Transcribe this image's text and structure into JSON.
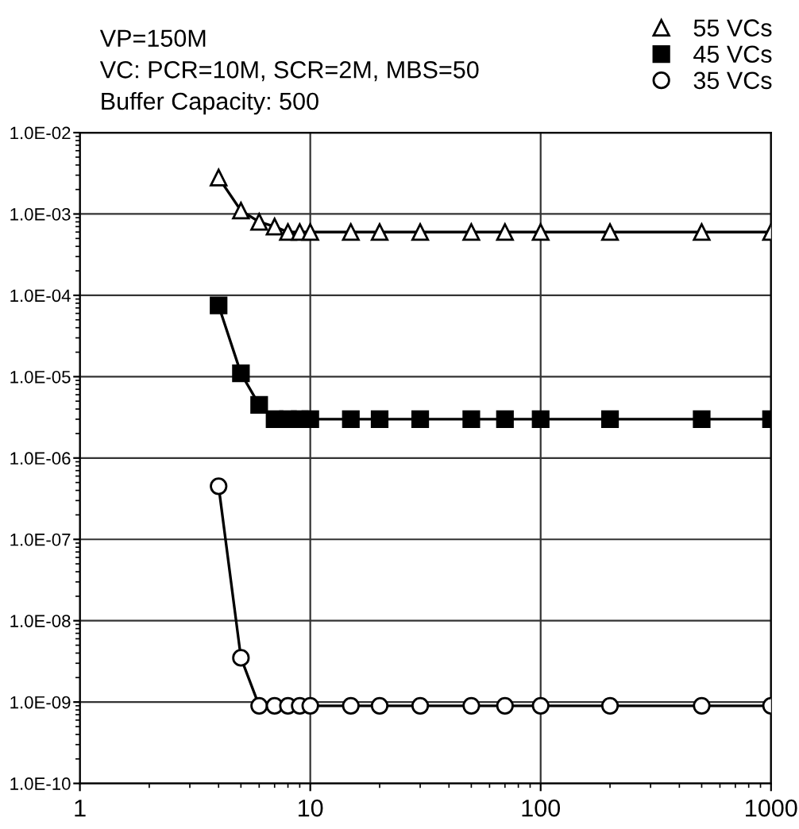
{
  "chart_data": {
    "type": "line",
    "log": "xy",
    "grid": true,
    "legend": "top right",
    "annotations": [
      "VP=150M",
      "VC: PCR=10M, SCR=2M, MBS=50",
      "Buffer Capacity: 500"
    ],
    "xlim": [
      1,
      1000
    ],
    "xticks": [
      1,
      10,
      100,
      1000
    ],
    "ylim": [
      1e-10,
      0.01
    ],
    "yticks": [
      {
        "value": 1e-10,
        "label": "1.0E-10"
      },
      {
        "value": 1e-09,
        "label": "1.0E-09"
      },
      {
        "value": 1e-08,
        "label": "1.0E-08"
      },
      {
        "value": 1e-07,
        "label": "1.0E-07"
      },
      {
        "value": 1e-06,
        "label": "1.0E-06"
      },
      {
        "value": 1e-05,
        "label": "1.0E-05"
      },
      {
        "value": 0.0001,
        "label": "1.0E-04"
      },
      {
        "value": 0.001,
        "label": "1.0E-03"
      },
      {
        "value": 0.01,
        "label": "1.0E-02"
      }
    ],
    "x": [
      4,
      5,
      6,
      7,
      8,
      9,
      10,
      15,
      20,
      30,
      50,
      70,
      100,
      200,
      500,
      1000
    ],
    "series": [
      {
        "name": "55 VCs",
        "color": "#000000",
        "marker": "triangle",
        "values": [
          0.0028,
          0.0011,
          0.0008,
          0.0007,
          0.0006,
          0.0006,
          0.0006,
          0.0006,
          0.0006,
          0.0006,
          0.0006,
          0.0006,
          0.0006,
          0.0006,
          0.0006,
          0.0006
        ]
      },
      {
        "name": "45 VCs",
        "color": "#000000",
        "marker": "square",
        "values": [
          7.5e-05,
          1.1e-05,
          4.5e-06,
          3e-06,
          3e-06,
          3e-06,
          3e-06,
          3e-06,
          3e-06,
          3e-06,
          3e-06,
          3e-06,
          3e-06,
          3e-06,
          3e-06,
          3e-06
        ]
      },
      {
        "name": "35 VCs",
        "color": "#000000",
        "marker": "circle",
        "values": [
          4.5e-07,
          3.5e-09,
          9e-10,
          9e-10,
          9e-10,
          9e-10,
          9e-10,
          9e-10,
          9e-10,
          9e-10,
          9e-10,
          9e-10,
          9e-10,
          9e-10,
          9e-10,
          9e-10
        ]
      }
    ]
  }
}
